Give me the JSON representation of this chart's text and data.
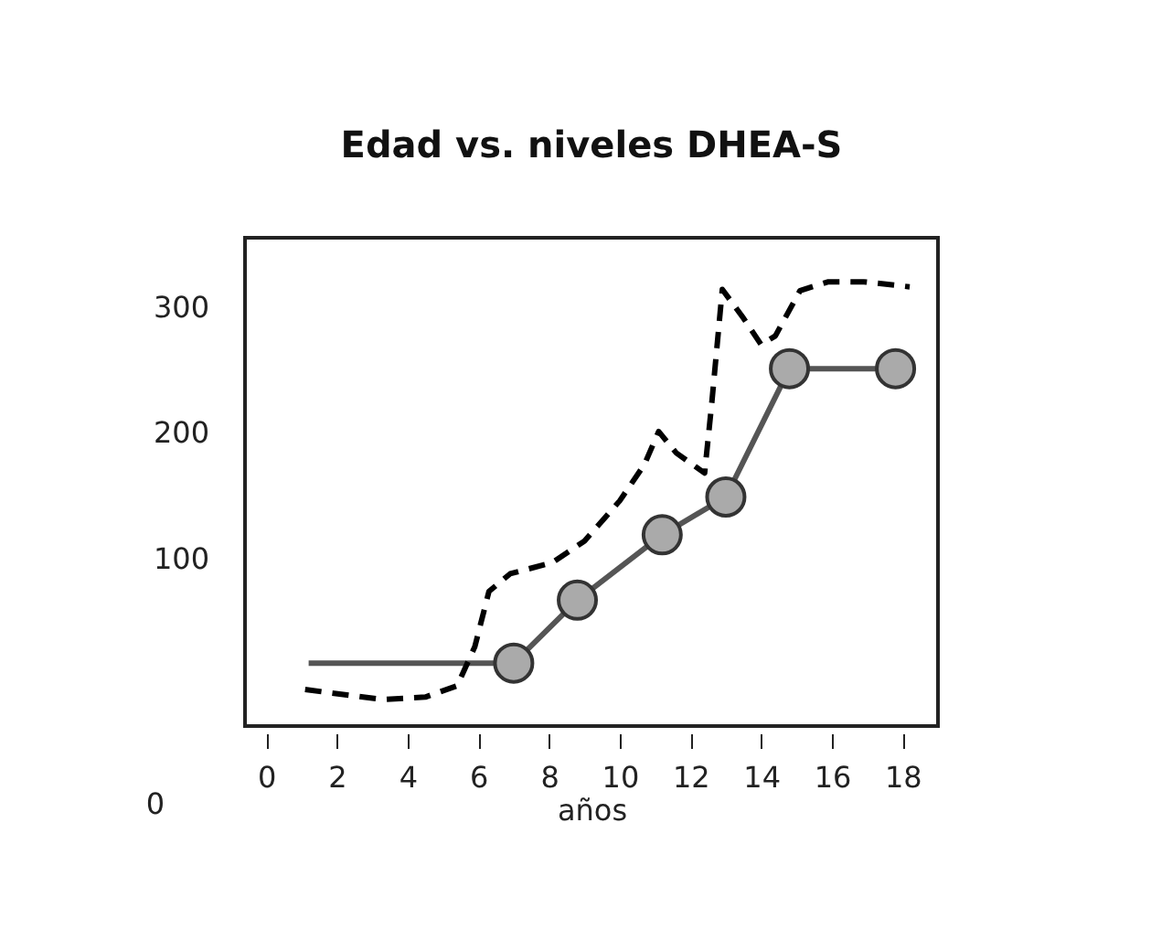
{
  "chart_data": {
    "type": "line",
    "title": "Edad vs. niveles DHEA-S",
    "xlabel": "años",
    "xlim": [
      -0.6,
      19.0
    ],
    "xticks": [
      0,
      2,
      4,
      6,
      8,
      10,
      12,
      14,
      16,
      18
    ],
    "ylim": [
      -33,
      355
    ],
    "yticks": [
      100,
      200,
      300
    ],
    "grid": false,
    "annotations": [
      "0"
    ],
    "series": [
      {
        "color": "#555555",
        "line_style": "solid",
        "marker": "none",
        "x": [
          1.2,
          6.5
        ],
        "values": [
          17,
          17
        ]
      },
      {
        "color": "#555555",
        "line_style": "solid",
        "marker": "circle",
        "x": [
          7.0,
          8.8,
          11.2,
          13.0,
          14.8,
          17.8
        ],
        "values": [
          17,
          67,
          119,
          149,
          251,
          251
        ]
      },
      {
        "color": "#000000",
        "line_style": "dashed",
        "marker": "none",
        "x": [
          1.1,
          3.3,
          4.5,
          5.4,
          5.9,
          6.3,
          6.9,
          8.1,
          9.0,
          10.0,
          10.7,
          11.1,
          11.6,
          12.4,
          12.6,
          12.9,
          13.5,
          14.0,
          14.4,
          15.1,
          15.9,
          16.9,
          18.2
        ],
        "values": [
          -4,
          -12,
          -10,
          -1,
          30,
          74,
          88,
          97,
          114,
          146,
          175,
          201,
          184,
          168,
          223,
          314,
          291,
          270,
          277,
          313,
          320,
          320,
          316
        ]
      }
    ]
  }
}
